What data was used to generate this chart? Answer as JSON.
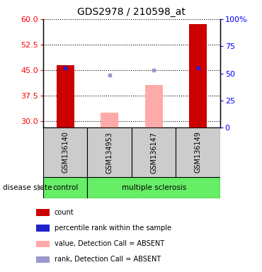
{
  "title": "GDS2978 / 210598_at",
  "samples": [
    "GSM136140",
    "GSM134953",
    "GSM136147",
    "GSM136149"
  ],
  "ylim_left": [
    28,
    60
  ],
  "ylim_right": [
    0,
    100
  ],
  "yticks_left": [
    30,
    37.5,
    45,
    52.5,
    60
  ],
  "yticks_right": [
    0,
    25,
    50,
    75,
    100
  ],
  "red_bars": {
    "0": 46.5,
    "3": 58.5
  },
  "absent_value_bars": {
    "1": 32.5,
    "2": 40.5
  },
  "absent_value_color": "#ffaaaa",
  "present_perc_dots": {
    "0": 45.5,
    "3": 45.5
  },
  "percentile_dot_color": "#2222cc",
  "absent_rank_dots": {
    "1": 43.5,
    "2": 45.0
  },
  "absent_rank_color": "#9999cc",
  "bar_width": 0.4,
  "disease_state_groups": [
    {
      "label": "control",
      "start": 0,
      "end": 1,
      "color": "#66ee66"
    },
    {
      "label": "multiple sclerosis",
      "start": 1,
      "end": 4,
      "color": "#66ee66"
    }
  ],
  "sample_label_bg": "#cccccc",
  "legend_items": [
    {
      "color": "#cc0000",
      "label": "count"
    },
    {
      "color": "#2222cc",
      "label": "percentile rank within the sample"
    },
    {
      "color": "#ffaaaa",
      "label": "value, Detection Call = ABSENT"
    },
    {
      "color": "#9999cc",
      "label": "rank, Detection Call = ABSENT"
    }
  ]
}
